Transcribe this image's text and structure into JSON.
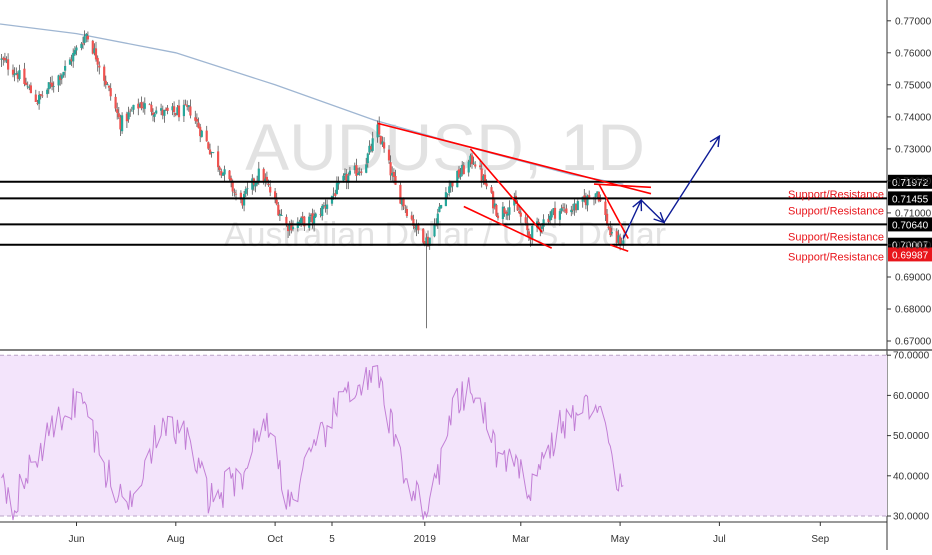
{
  "watermark": {
    "symbol": "AUDUSD, 1D",
    "name": "Australian Dollar / U.S. Dollar"
  },
  "colors": {
    "up": "#26a69a",
    "down": "#ef5350",
    "wick": "#555555",
    "ma": "#9fb6d2",
    "level": "#000000",
    "trend": "#ff0000",
    "arrow": "#0d1b96",
    "label_red": "#e8151b",
    "rsi_line": "#c27fd6",
    "rsi_band": "#f3e4fb",
    "axis_text": "#333333"
  },
  "chart_data": [
    {
      "type": "candlestick",
      "ylim": [
        0.6675,
        0.7765
      ],
      "yticks": [
        "0.77000",
        "0.76000",
        "0.75000",
        "0.74000",
        "0.73000",
        "0.72000",
        "0.71000",
        "0.70000",
        "0.69000",
        "0.68000",
        "0.67000"
      ],
      "xticks": [
        "Jun",
        "Aug",
        "Oct",
        "5",
        "2019",
        "Mar",
        "May",
        "Jul",
        "Sep"
      ],
      "x_range": {
        "start": "2018-04-15",
        "end": "2019-10-12"
      },
      "last_date": "2019-05-03",
      "anchors": [
        {
          "date": "2018-04-15",
          "price": 0.758
        },
        {
          "date": "2018-04-25",
          "price": 0.754
        },
        {
          "date": "2018-05-08",
          "price": 0.745
        },
        {
          "date": "2018-05-25",
          "price": 0.755
        },
        {
          "date": "2018-06-07",
          "price": 0.766
        },
        {
          "date": "2018-06-14",
          "price": 0.758
        },
        {
          "date": "2018-06-28",
          "price": 0.738
        },
        {
          "date": "2018-07-10",
          "price": 0.744
        },
        {
          "date": "2018-07-25",
          "price": 0.741
        },
        {
          "date": "2018-08-10",
          "price": 0.742
        },
        {
          "date": "2018-08-22",
          "price": 0.73
        },
        {
          "date": "2018-09-10",
          "price": 0.713
        },
        {
          "date": "2018-09-22",
          "price": 0.723
        },
        {
          "date": "2018-10-08",
          "price": 0.706
        },
        {
          "date": "2018-10-25",
          "price": 0.708
        },
        {
          "date": "2018-11-12",
          "price": 0.72
        },
        {
          "date": "2018-11-25",
          "price": 0.725
        },
        {
          "date": "2018-12-03",
          "price": 0.736
        },
        {
          "date": "2018-12-14",
          "price": 0.718
        },
        {
          "date": "2018-12-27",
          "price": 0.705
        },
        {
          "date": "2019-01-03",
          "price": 0.701
        },
        {
          "date": "2019-01-15",
          "price": 0.718
        },
        {
          "date": "2019-01-31",
          "price": 0.727
        },
        {
          "date": "2019-02-15",
          "price": 0.71
        },
        {
          "date": "2019-02-25",
          "price": 0.713
        },
        {
          "date": "2019-03-06",
          "price": 0.703
        },
        {
          "date": "2019-03-20",
          "price": 0.71
        },
        {
          "date": "2019-04-05",
          "price": 0.712
        },
        {
          "date": "2019-04-17",
          "price": 0.717
        },
        {
          "date": "2019-04-26",
          "price": 0.702
        },
        {
          "date": "2019-05-03",
          "price": 0.701
        }
      ],
      "flash_crash": {
        "date": "2019-01-02",
        "low": 0.674
      },
      "moving_average": {
        "period": 200,
        "points": [
          {
            "date": "2018-04-15",
            "price": 0.769
          },
          {
            "date": "2018-06-01",
            "price": 0.766
          },
          {
            "date": "2018-08-01",
            "price": 0.76
          },
          {
            "date": "2018-10-01",
            "price": 0.75
          },
          {
            "date": "2018-12-01",
            "price": 0.739
          },
          {
            "date": "2019-02-01",
            "price": 0.73
          },
          {
            "date": "2019-04-01",
            "price": 0.722
          },
          {
            "date": "2019-05-03",
            "price": 0.719
          }
        ]
      },
      "levels": [
        {
          "price": 0.71972,
          "label": "0.71972",
          "annotation": "Support/Resistance"
        },
        {
          "price": 0.71455,
          "label": "0.71455",
          "annotation": "Support/Resistance"
        },
        {
          "price": 0.7064,
          "label": "0.70640",
          "annotation": "Support/Resistance"
        },
        {
          "price": 0.70007,
          "label": "0.70007",
          "annotation": "Support/Resistance"
        }
      ],
      "current_price": {
        "price": 0.69987,
        "label": "0.69987"
      },
      "trendlines": [
        {
          "from": {
            "date": "2018-12-03",
            "price": 0.738
          },
          "to": {
            "date": "2019-05-20",
            "price": 0.716
          }
        },
        {
          "from": {
            "date": "2019-01-25",
            "price": 0.712
          },
          "to": {
            "date": "2019-03-20",
            "price": 0.699
          }
        },
        {
          "from": {
            "date": "2019-01-29",
            "price": 0.73
          },
          "to": {
            "date": "2019-03-14",
            "price": 0.704
          }
        },
        {
          "from": {
            "date": "2019-04-15",
            "price": 0.719
          },
          "to": {
            "date": "2019-05-20",
            "price": 0.718
          }
        },
        {
          "from": {
            "date": "2019-04-18",
            "price": 0.719
          },
          "to": {
            "date": "2019-05-06",
            "price": 0.702
          }
        },
        {
          "from": {
            "date": "2019-04-25",
            "price": 0.7
          },
          "to": {
            "date": "2019-05-06",
            "price": 0.698
          }
        }
      ],
      "projection": [
        {
          "date": "2019-05-03",
          "price": 0.702
        },
        {
          "date": "2019-05-14",
          "price": 0.714
        },
        {
          "date": "2019-05-28",
          "price": 0.707
        },
        {
          "date": "2019-07-01",
          "price": 0.734
        }
      ]
    },
    {
      "type": "line",
      "series_type": "RSI",
      "ylim": [
        28.5,
        70.8
      ],
      "yticks": [
        "70.0000",
        "60.0000",
        "50.0000",
        "40.0000",
        "30.0000"
      ],
      "band": [
        30,
        70
      ],
      "anchors": [
        {
          "date": "2018-04-15",
          "value": 44
        },
        {
          "date": "2018-04-22",
          "value": 32
        },
        {
          "date": "2018-05-10",
          "value": 47
        },
        {
          "date": "2018-05-25",
          "value": 56
        },
        {
          "date": "2018-06-04",
          "value": 60
        },
        {
          "date": "2018-06-18",
          "value": 42
        },
        {
          "date": "2018-07-01",
          "value": 32
        },
        {
          "date": "2018-07-20",
          "value": 50
        },
        {
          "date": "2018-08-05",
          "value": 52
        },
        {
          "date": "2018-08-22",
          "value": 34
        },
        {
          "date": "2018-09-10",
          "value": 40
        },
        {
          "date": "2018-09-25",
          "value": 55
        },
        {
          "date": "2018-10-10",
          "value": 33
        },
        {
          "date": "2018-10-28",
          "value": 48
        },
        {
          "date": "2018-11-15",
          "value": 62
        },
        {
          "date": "2018-12-03",
          "value": 64
        },
        {
          "date": "2018-12-20",
          "value": 40
        },
        {
          "date": "2019-01-03",
          "value": 31
        },
        {
          "date": "2019-01-20",
          "value": 58
        },
        {
          "date": "2019-02-01",
          "value": 61
        },
        {
          "date": "2019-02-15",
          "value": 45
        },
        {
          "date": "2019-03-07",
          "value": 38
        },
        {
          "date": "2019-03-25",
          "value": 52
        },
        {
          "date": "2019-04-17",
          "value": 59
        },
        {
          "date": "2019-04-24",
          "value": 47
        },
        {
          "date": "2019-04-30",
          "value": 34
        },
        {
          "date": "2019-05-01",
          "value": 42
        },
        {
          "date": "2019-05-03",
          "value": 36
        }
      ]
    }
  ]
}
